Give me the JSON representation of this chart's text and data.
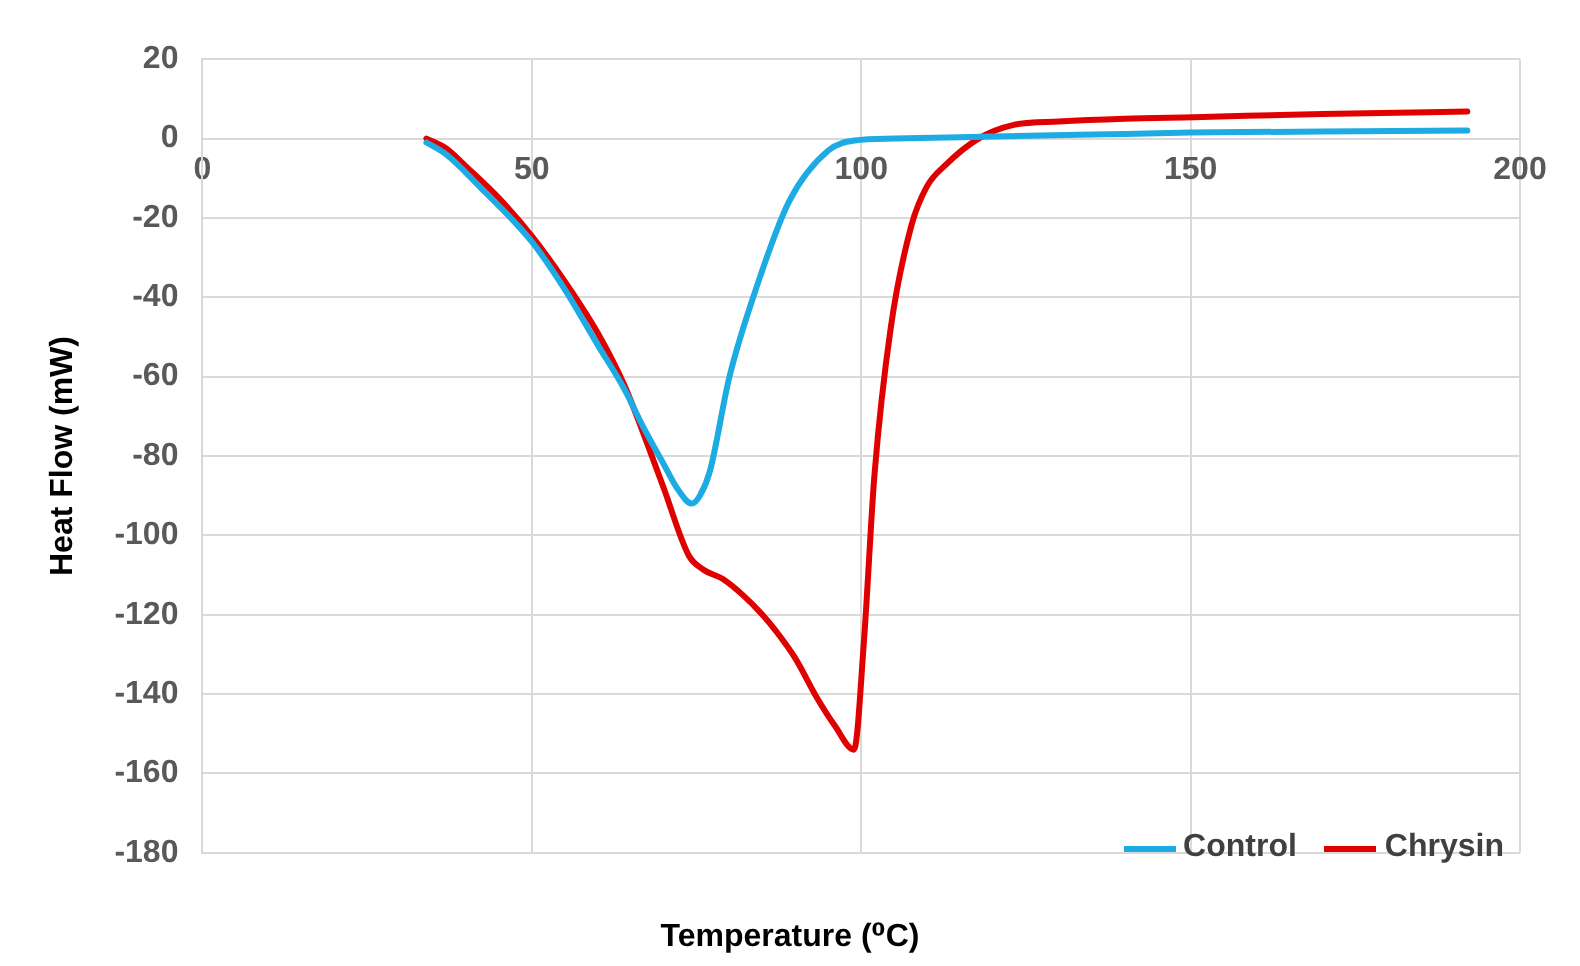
{
  "chart_data": {
    "type": "line",
    "xlabel": "Temperature (⁰C)",
    "ylabel": "Heat Flow (mW)",
    "xlim": [
      0,
      200
    ],
    "xticks": [
      0,
      50,
      100,
      150,
      200
    ],
    "ylim": [
      -180,
      20
    ],
    "yticks": [
      -180,
      -160,
      -140,
      -120,
      -100,
      -80,
      -60,
      -40,
      -20,
      0,
      20
    ],
    "grid": true,
    "legend": "bottom right",
    "marker": "none",
    "line_style": "solid",
    "series": [
      {
        "name": "Control",
        "color": "#1cabe2",
        "x": [
          34,
          37,
          42,
          50,
          55,
          60,
          64,
          67,
          70,
          72,
          74.3,
          75.5,
          77,
          80,
          84,
          89,
          95,
          99,
          105,
          120,
          135,
          150,
          170,
          192
        ],
        "values": [
          -1,
          -4,
          -12,
          -26,
          -38,
          -52,
          -63,
          -73,
          -82,
          -88,
          -92,
          -90,
          -84,
          -60,
          -38,
          -16,
          -3,
          -0.5,
          0,
          0.5,
          1,
          1.5,
          1.8,
          2
        ]
      },
      {
        "name": "Chrysin",
        "color": "#e00000",
        "x": [
          34,
          37,
          40,
          45,
          50,
          55,
          60,
          64,
          67,
          70,
          73.8,
          76,
          79,
          82,
          85,
          87,
          90,
          93.3,
          96,
          98.9,
          100.4,
          102,
          104.5,
          107.6,
          110,
          112.7,
          117.8,
          123,
          130,
          140,
          150.5,
          170,
          192
        ],
        "values": [
          0,
          -2.5,
          -7,
          -15,
          -24.6,
          -36,
          -49,
          -62,
          -74.6,
          -88,
          -105,
          -108.6,
          -111,
          -115,
          -120,
          -124,
          -131,
          -141,
          -148,
          -154,
          -127,
          -85,
          -47.5,
          -22,
          -12,
          -6.8,
          0,
          3.4,
          4.3,
          5,
          5.4,
          6.2,
          6.8
        ]
      }
    ]
  }
}
